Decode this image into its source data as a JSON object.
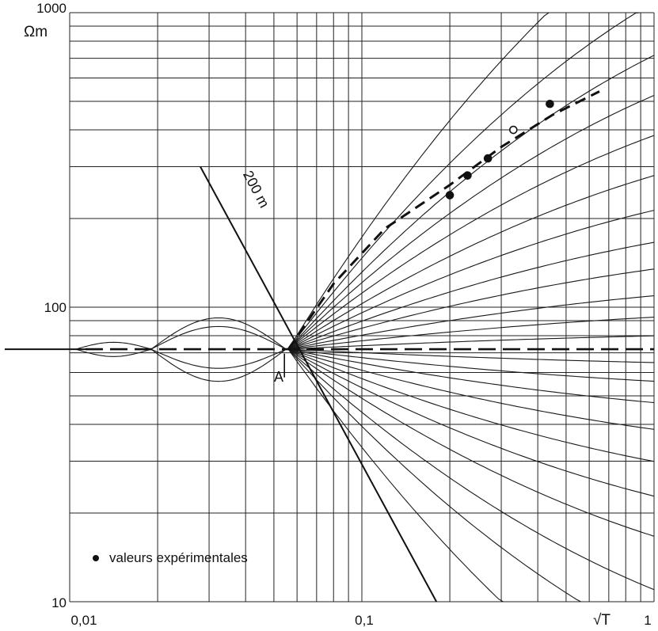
{
  "chart_data": {
    "type": "line",
    "title": "",
    "xscale": "log",
    "yscale": "log",
    "xlim": [
      0.01,
      1
    ],
    "ylim": [
      10,
      1000
    ],
    "grid": true,
    "x_tick_labels": [
      "0,01",
      "0,1",
      "1"
    ],
    "y_tick_labels": [
      "10",
      "100",
      "1000"
    ],
    "xlabel": "√T",
    "ylabel": "Ωm",
    "reference_line": {
      "label": "200 m",
      "points": [
        [
          0.028,
          300
        ],
        [
          0.18,
          10
        ]
      ]
    },
    "annotation": {
      "label": "A",
      "x": 0.055,
      "y": 67
    },
    "legend": {
      "position": "bottom-left",
      "entries": [
        {
          "marker": "dot",
          "label": "valeurs expérimentales"
        }
      ]
    },
    "base_value": 72,
    "pivot_x": 0.056,
    "family_slopes": [
      1.6,
      1.3,
      1.1,
      0.95,
      0.8,
      0.65,
      0.52,
      0.4,
      0.3,
      0.2,
      0.12,
      0.05,
      -0.05,
      -0.12,
      -0.2,
      -0.3,
      -0.42,
      -0.55,
      -0.7,
      -0.9,
      -1.1,
      -1.4
    ],
    "lobe_curves": [
      {
        "x_range": [
          0.0105,
          0.019
        ],
        "ymax": 76,
        "ymin": 68
      },
      {
        "x_range": [
          0.019,
          0.055
        ],
        "ymax": 92,
        "ymin": 56
      },
      {
        "x_range": [
          0.019,
          0.055
        ],
        "ymax": 86,
        "ymin": 62
      }
    ],
    "experimental_points": [
      {
        "x": 0.2,
        "y": 240,
        "marker": "filled"
      },
      {
        "x": 0.23,
        "y": 280,
        "marker": "filled"
      },
      {
        "x": 0.27,
        "y": 320,
        "marker": "filled"
      },
      {
        "x": 0.33,
        "y": 400,
        "marker": "open"
      },
      {
        "x": 0.44,
        "y": 490,
        "marker": "filled"
      }
    ],
    "interpretation_curve": [
      [
        0.056,
        72
      ],
      [
        0.08,
        120
      ],
      [
        0.12,
        185
      ],
      [
        0.2,
        260
      ],
      [
        0.3,
        350
      ],
      [
        0.45,
        450
      ],
      [
        0.65,
        540
      ]
    ]
  }
}
